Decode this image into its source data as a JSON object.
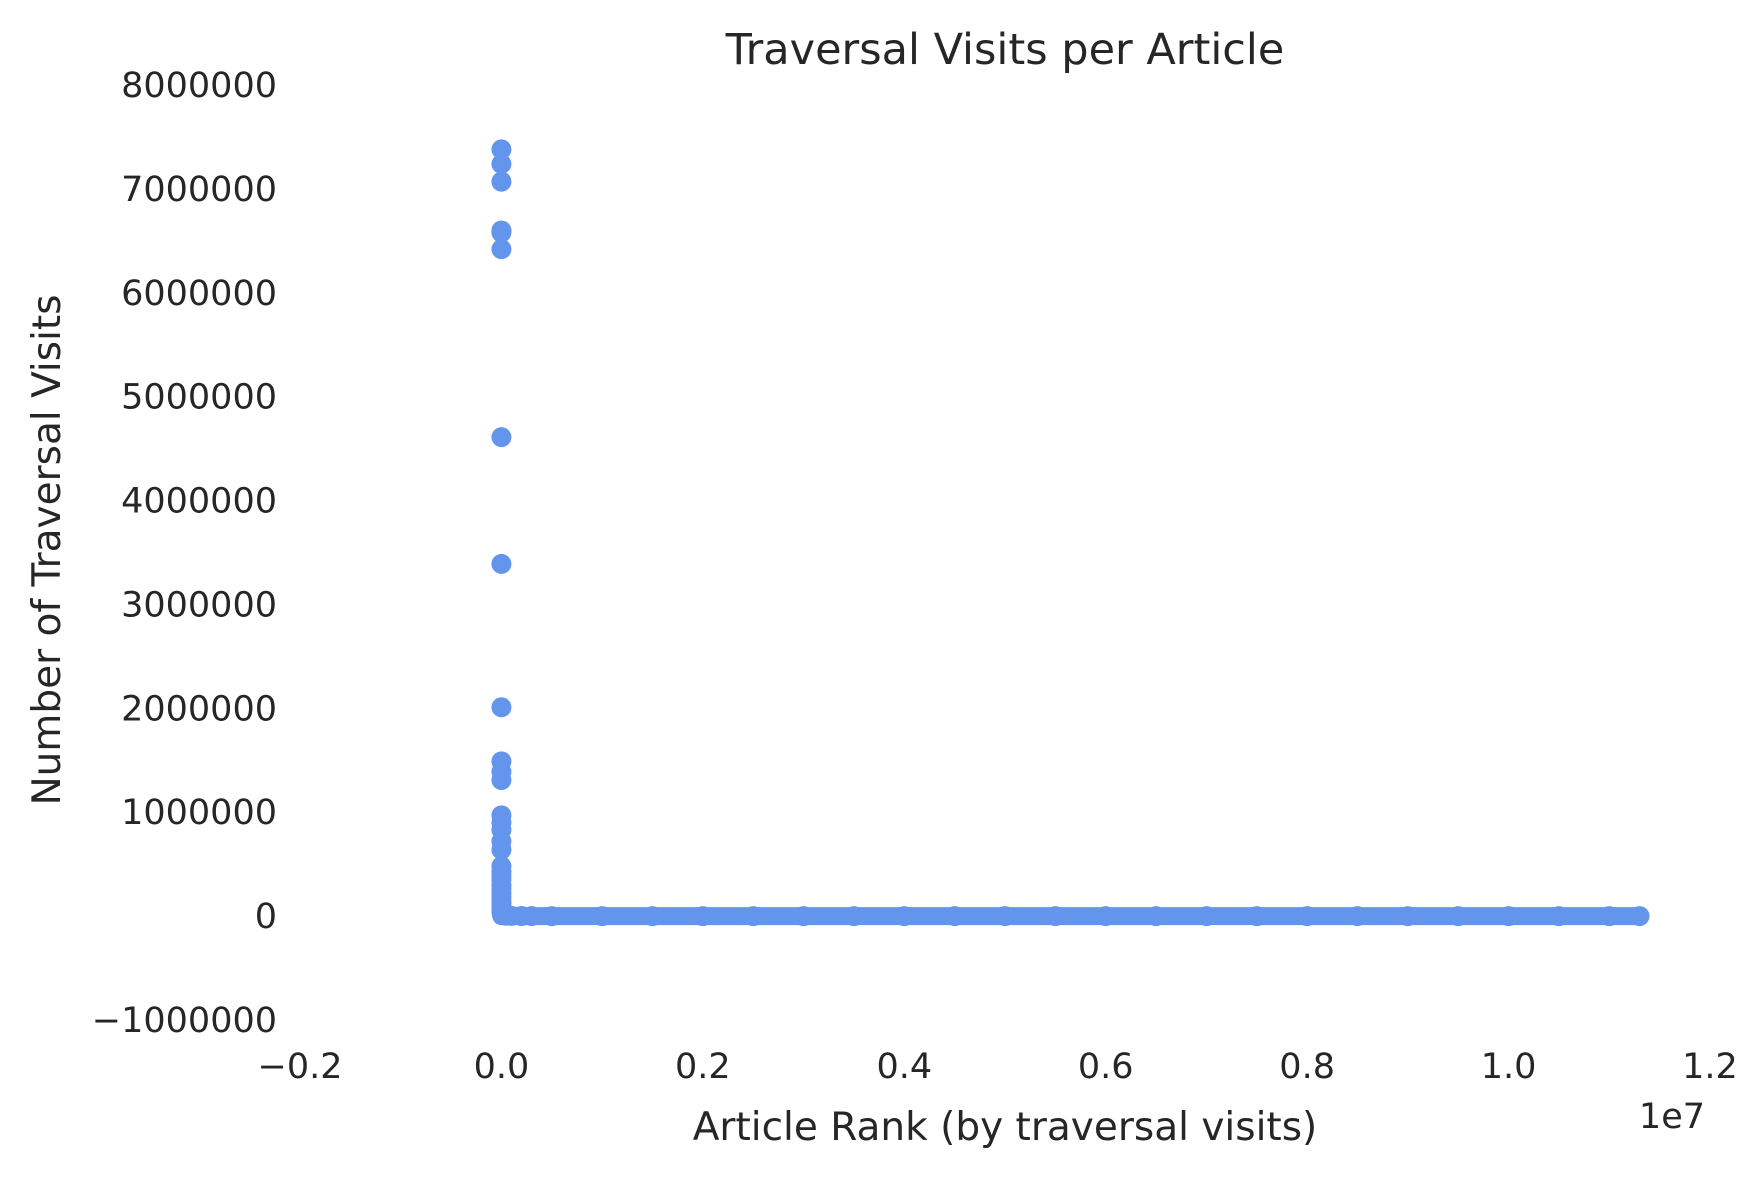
{
  "chart_data": {
    "type": "scatter",
    "title": "Traversal Visits per Article",
    "xlabel": "Article Rank (by traversal visits)",
    "ylabel": "Number of Traversal Visits",
    "x_offset_label": "1e7",
    "xlim": [
      -2000000,
      12000000
    ],
    "ylim": [
      -1000000,
      8000000
    ],
    "x_ticks": [
      -2000000,
      0,
      2000000,
      4000000,
      6000000,
      8000000,
      10000000,
      12000000
    ],
    "x_tick_labels": [
      "−0.2",
      "0.0",
      "0.2",
      "0.4",
      "0.6",
      "0.8",
      "1.0",
      "1.2"
    ],
    "y_ticks": [
      -1000000,
      0,
      1000000,
      2000000,
      3000000,
      4000000,
      5000000,
      6000000,
      7000000,
      8000000
    ],
    "y_tick_labels": [
      "−1000000",
      "0",
      "1000000",
      "2000000",
      "3000000",
      "4000000",
      "5000000",
      "6000000",
      "7000000",
      "8000000"
    ],
    "grid": false,
    "color": "#6495ed",
    "points_x": [
      0,
      1,
      2,
      3,
      4,
      5,
      6,
      7,
      8,
      9,
      10,
      11,
      12,
      13,
      14,
      15,
      16,
      17,
      18,
      19,
      20,
      25,
      30,
      40,
      50,
      80,
      100,
      200,
      500,
      1000,
      5000,
      20000,
      50000,
      100000,
      200000,
      300000,
      500000,
      1000000,
      1500000,
      2000000,
      2500000,
      3000000,
      3500000,
      4000000,
      4500000,
      5000000,
      5500000,
      6000000,
      6500000,
      7000000,
      7500000,
      8000000,
      8500000,
      9000000,
      9500000,
      10000000,
      10500000,
      11000000,
      11300000
    ],
    "points_y": [
      7380000,
      7240000,
      7070000,
      6600000,
      6580000,
      6420000,
      4610000,
      3390000,
      2010000,
      1490000,
      1390000,
      1310000,
      970000,
      900000,
      830000,
      720000,
      640000,
      480000,
      430000,
      390000,
      350000,
      300000,
      260000,
      220000,
      180000,
      140000,
      110000,
      80000,
      50000,
      30000,
      15000,
      8000,
      4000,
      2000,
      1000,
      500,
      200,
      100,
      50,
      20,
      10,
      5,
      3,
      2,
      1,
      1,
      1,
      1,
      1,
      1,
      1,
      1,
      1,
      1,
      1,
      1,
      1,
      1,
      1
    ]
  }
}
